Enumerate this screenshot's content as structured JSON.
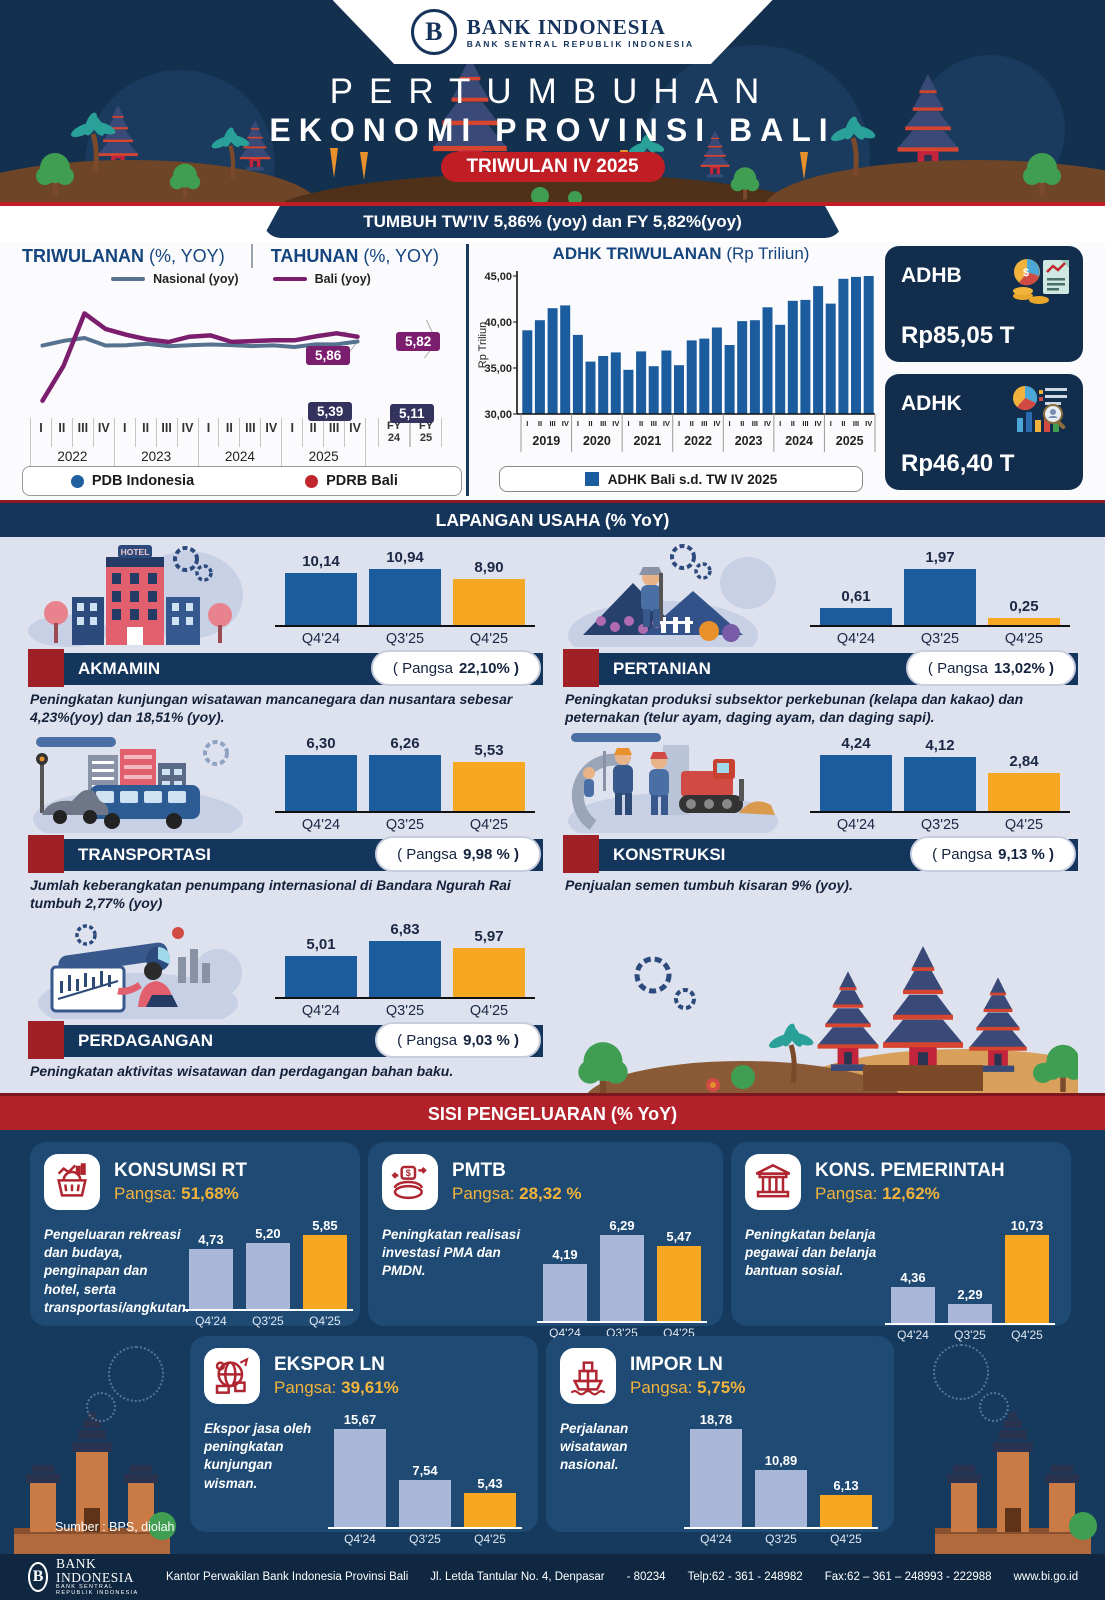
{
  "colors": {
    "navy": "#14304f",
    "band_navy": "#15355a",
    "red": "#b8202a",
    "bar_blue": "#1b5c9e",
    "orange": "#f6a823",
    "lavender": "#a9b7d9",
    "bali_purple": "#7b1e6d",
    "nasional_slate": "#56728f",
    "pdb_blue": "#1f5fa0",
    "pdrb_red": "#c0272d"
  },
  "header": {
    "logo_title": "BANK INDONESIA",
    "logo_subtitle": "BANK SENTRAL REPUBLIK INDONESIA",
    "logo_mark": "B",
    "title_line1": "PERTUMBUHAN",
    "title_line2": "EKONOMI PROVINSI BALI",
    "badge": "TRIWULAN IV 2025",
    "growth_banner": "TUMBUH TW’IV 5,86% (yoy) dan FY 5,82%(yoy)"
  },
  "summary_cards": [
    {
      "label": "ADHB",
      "value": "Rp85,05 T",
      "icon": "money-report-icon"
    },
    {
      "label": "ADHK",
      "value": "Rp46,40 T",
      "icon": "analytics-magnifier-icon"
    }
  ],
  "lapangan": {
    "band": "LAPANGAN USAHA (% YoY)",
    "items": [
      {
        "name": "AKMAMIN",
        "sign": "HOTEL",
        "pangsa_prefix": "( Pangsa",
        "pangsa_value": "22,10% )",
        "desc": "Peningkatan kunjungan wisatawan mancanegara dan nusantara sebesar 4,23%(yoy) dan 18,51% (yoy)."
      },
      {
        "name": "PERTANIAN",
        "pangsa_prefix": "( Pangsa",
        "pangsa_value": "13,02% )",
        "desc": "Peningkatan produksi subsektor perkebunan (kelapa dan kakao) dan peternakan (telur ayam, daging ayam, dan daging sapi)."
      },
      {
        "name": "TRANSPORTASI",
        "pangsa_prefix": "( Pangsa",
        "pangsa_value": "9,98 % )",
        "desc": "Jumlah keberangkatan penumpang internasional di Bandara Ngurah Rai tumbuh 2,77% (yoy)"
      },
      {
        "name": "KONSTRUKSI",
        "pangsa_prefix": "( Pangsa",
        "pangsa_value": "9,13 % )",
        "desc": "Penjualan semen tumbuh kisaran 9% (yoy)."
      },
      {
        "name": "PERDAGANGAN",
        "pangsa_prefix": "( Pangsa",
        "pangsa_value": "9,03 % )",
        "desc": "Peningkatan aktivitas wisatawan dan perdagangan bahan baku."
      }
    ]
  },
  "pengeluaran": {
    "band": "SISI PENGELUARAN (% YoY)",
    "pangsa_label": "Pangsa:",
    "cards": [
      {
        "title": "KONSUMSI RT",
        "pangsa": "51,68%",
        "icon": "shopping-basket-icon",
        "desc": "Pengeluaran rekreasi dan budaya, penginapan dan hotel, serta transportasi/angkutan."
      },
      {
        "title": "PMTB",
        "pangsa": "28,32 %",
        "icon": "money-circulation-icon",
        "desc": "Peningkatan realisasi investasi PMA dan PMDN."
      },
      {
        "title": "KONS. PEMERINTAH",
        "pangsa": "12,62%",
        "icon": "government-building-icon",
        "desc": "Peningkatan belanja pegawai dan belanja bantuan sosial."
      },
      {
        "title": "EKSPOR LN",
        "pangsa": "39,61%",
        "icon": "export-goods-icon",
        "desc": "Ekspor jasa oleh peningkatan kunjungan wisman."
      },
      {
        "title": "IMPOR LN",
        "pangsa": "5,75%",
        "icon": "ship-icon",
        "desc": "Perjalanan wisatawan nasional."
      }
    ]
  },
  "footer": {
    "source": "Sumber : BPS, diolah",
    "logo_title": "BANK INDONESIA",
    "logo_subtitle": "BANK SENTRAL REPUBLIK INDONESIA",
    "logo_mark": "B",
    "office": "Kantor Perwakilan Bank Indonesia Provinsi Bali",
    "address": "Jl. Letda Tantular No. 4, Denpasar",
    "postal": "- 80234",
    "phone": "Telp:62 - 361 - 248982",
    "fax": "Fax:62 – 361 – 248993 - 222988",
    "web": "www.bi.go.id"
  },
  "chart_data": [
    {
      "id": "growth_lines",
      "type": "line",
      "title_left": "TRIWULANAN",
      "title_left_suffix": "(%, YOY)",
      "title_right": "TAHUNAN",
      "title_right_suffix": "(%, YOY)",
      "quarter_ticks": [
        "I",
        "II",
        "III",
        "IV"
      ],
      "years": [
        "2022",
        "2023",
        "2024",
        "2025"
      ],
      "fy_ticks": [
        [
          "FY",
          "24"
        ],
        [
          "FY",
          "25"
        ]
      ],
      "ylim": [
        -1,
        9
      ],
      "series": [
        {
          "name": "Nasional (yoy)",
          "color": "#56728f",
          "quarterly": [
            5.0,
            5.45,
            5.73,
            5.01,
            5.04,
            5.17,
            4.94,
            5.04,
            5.11,
            5.05,
            4.95,
            5.02,
            4.87,
            5.12,
            5.12,
            5.39
          ],
          "fy": [
            5.03,
            5.11
          ]
        },
        {
          "name": "Bali (yoy)",
          "color": "#7b1e6d",
          "quarterly": [
            -0.3,
            3.05,
            8.09,
            6.61,
            6.04,
            5.6,
            5.35,
            5.86,
            5.98,
            5.36,
            5.43,
            5.51,
            5.51,
            5.88,
            6.18,
            5.86
          ],
          "fy": [
            5.6,
            5.82
          ]
        }
      ],
      "callouts": [
        {
          "text": "5,86",
          "series": "Bali (yoy)",
          "point": "TW IV 2025"
        },
        {
          "text": "5,39",
          "series": "Nasional (yoy)",
          "point": "TW IV 2025"
        },
        {
          "text": "5,82",
          "series": "Bali (yoy)",
          "point": "FY 25"
        },
        {
          "text": "5,11",
          "series": "Nasional (yoy)",
          "point": "FY 25"
        }
      ],
      "legend_bottom": [
        {
          "label": "PDB Indonesia",
          "color": "#1f5fa0"
        },
        {
          "label": "PDRB Bali",
          "color": "#c0272d"
        }
      ]
    },
    {
      "id": "adhk_quarterly",
      "type": "bar",
      "title": "ADHK TRIWULANAN",
      "title_suffix": "(Rp Triliun)",
      "ylabel": "Rp Triliun",
      "ymin": 30,
      "ymax": 45,
      "yticks": [
        {
          "v": 45,
          "label": "45,00"
        },
        {
          "v": 40,
          "label": "40,00"
        },
        {
          "v": 35,
          "label": "35,00"
        },
        {
          "v": 30,
          "label": "30,00"
        }
      ],
      "quarters": [
        "I",
        "II",
        "III",
        "IV"
      ],
      "years": [
        "2019",
        "2020",
        "2021",
        "2022",
        "2023",
        "2024",
        "2025"
      ],
      "values": [
        39.1,
        40.2,
        41.5,
        41.8,
        38.6,
        35.7,
        36.3,
        36.7,
        34.8,
        36.8,
        35.2,
        36.9,
        35.3,
        38.0,
        38.2,
        39.4,
        37.5,
        40.1,
        40.2,
        41.6,
        39.7,
        42.3,
        42.4,
        43.9,
        42.0,
        44.7,
        44.9,
        45.0
      ],
      "bar_color": "#1b5c9e",
      "legend": "ADHK Bali s.d. TW IV 2025"
    },
    {
      "id": "akmamin",
      "type": "minibar",
      "title": "AKMAMIN (% YoY)",
      "categories": [
        "Q4'24",
        "Q3'25",
        "Q4'25"
      ],
      "values": [
        10.14,
        10.94,
        8.9
      ],
      "labels": [
        "10,14",
        "10,94",
        "8,90"
      ],
      "colors": [
        "#1b5c9e",
        "#1b5c9e",
        "#f6a823"
      ]
    },
    {
      "id": "pertanian",
      "type": "minibar",
      "title": "PERTANIAN (% YoY)",
      "categories": [
        "Q4'24",
        "Q3'25",
        "Q4'25"
      ],
      "values": [
        0.61,
        1.97,
        0.25
      ],
      "labels": [
        "0,61",
        "1,97",
        "0,25"
      ],
      "colors": [
        "#1b5c9e",
        "#1b5c9e",
        "#f6a823"
      ]
    },
    {
      "id": "transportasi",
      "type": "minibar",
      "title": "TRANSPORTASI (% YoY)",
      "categories": [
        "Q4'24",
        "Q3'25",
        "Q4'25"
      ],
      "values": [
        6.3,
        6.26,
        5.53
      ],
      "labels": [
        "6,30",
        "6,26",
        "5,53"
      ],
      "colors": [
        "#1b5c9e",
        "#1b5c9e",
        "#f6a823"
      ]
    },
    {
      "id": "konstruksi",
      "type": "minibar",
      "title": "KONSTRUKSI (% YoY)",
      "categories": [
        "Q4'24",
        "Q3'25",
        "Q4'25"
      ],
      "values": [
        4.24,
        4.12,
        2.84
      ],
      "labels": [
        "4,24",
        "4,12",
        "2,84"
      ],
      "colors": [
        "#1b5c9e",
        "#1b5c9e",
        "#f6a823"
      ]
    },
    {
      "id": "perdagangan",
      "type": "minibar",
      "title": "PERDAGANGAN (% YoY)",
      "categories": [
        "Q4'24",
        "Q3'25",
        "Q4'25"
      ],
      "values": [
        5.01,
        6.83,
        5.97
      ],
      "labels": [
        "5,01",
        "6,83",
        "5,97"
      ],
      "colors": [
        "#1b5c9e",
        "#1b5c9e",
        "#f6a823"
      ]
    },
    {
      "id": "konsumsi_rt",
      "type": "minibar",
      "title": "KONSUMSI RT (% YoY)",
      "categories": [
        "Q4'24",
        "Q3'25",
        "Q4'25"
      ],
      "values": [
        4.73,
        5.2,
        5.85
      ],
      "labels": [
        "4,73",
        "5,20",
        "5,85"
      ],
      "colors": [
        "#a9b7d9",
        "#a9b7d9",
        "#f6a823"
      ]
    },
    {
      "id": "pmtb",
      "type": "minibar",
      "title": "PMTB (% YoY)",
      "categories": [
        "Q4'24",
        "Q3'25",
        "Q4'25"
      ],
      "values": [
        4.19,
        6.29,
        5.47
      ],
      "labels": [
        "4,19",
        "6,29",
        "5,47"
      ],
      "colors": [
        "#a9b7d9",
        "#a9b7d9",
        "#f6a823"
      ]
    },
    {
      "id": "kons_pemerintah",
      "type": "minibar",
      "title": "KONS. PEMERINTAH (% YoY)",
      "categories": [
        "Q4'24",
        "Q3'25",
        "Q4'25"
      ],
      "values": [
        4.36,
        2.29,
        10.73
      ],
      "labels": [
        "4,36",
        "2,29",
        "10,73"
      ],
      "colors": [
        "#a9b7d9",
        "#a9b7d9",
        "#f6a823"
      ]
    },
    {
      "id": "ekspor_ln",
      "type": "minibar",
      "title": "EKSPOR LN (% YoY)",
      "categories": [
        "Q4'24",
        "Q3'25",
        "Q4'25"
      ],
      "values": [
        15.67,
        7.54,
        5.43
      ],
      "labels": [
        "15,67",
        "7,54",
        "5,43"
      ],
      "colors": [
        "#a9b7d9",
        "#a9b7d9",
        "#f6a823"
      ]
    },
    {
      "id": "impor_ln",
      "type": "minibar",
      "title": "IMPOR LN (% YoY)",
      "categories": [
        "Q4'24",
        "Q3'25",
        "Q4'25"
      ],
      "values": [
        18.78,
        10.89,
        6.13
      ],
      "labels": [
        "18,78",
        "10,89",
        "6,13"
      ],
      "colors": [
        "#a9b7d9",
        "#a9b7d9",
        "#f6a823"
      ]
    }
  ]
}
